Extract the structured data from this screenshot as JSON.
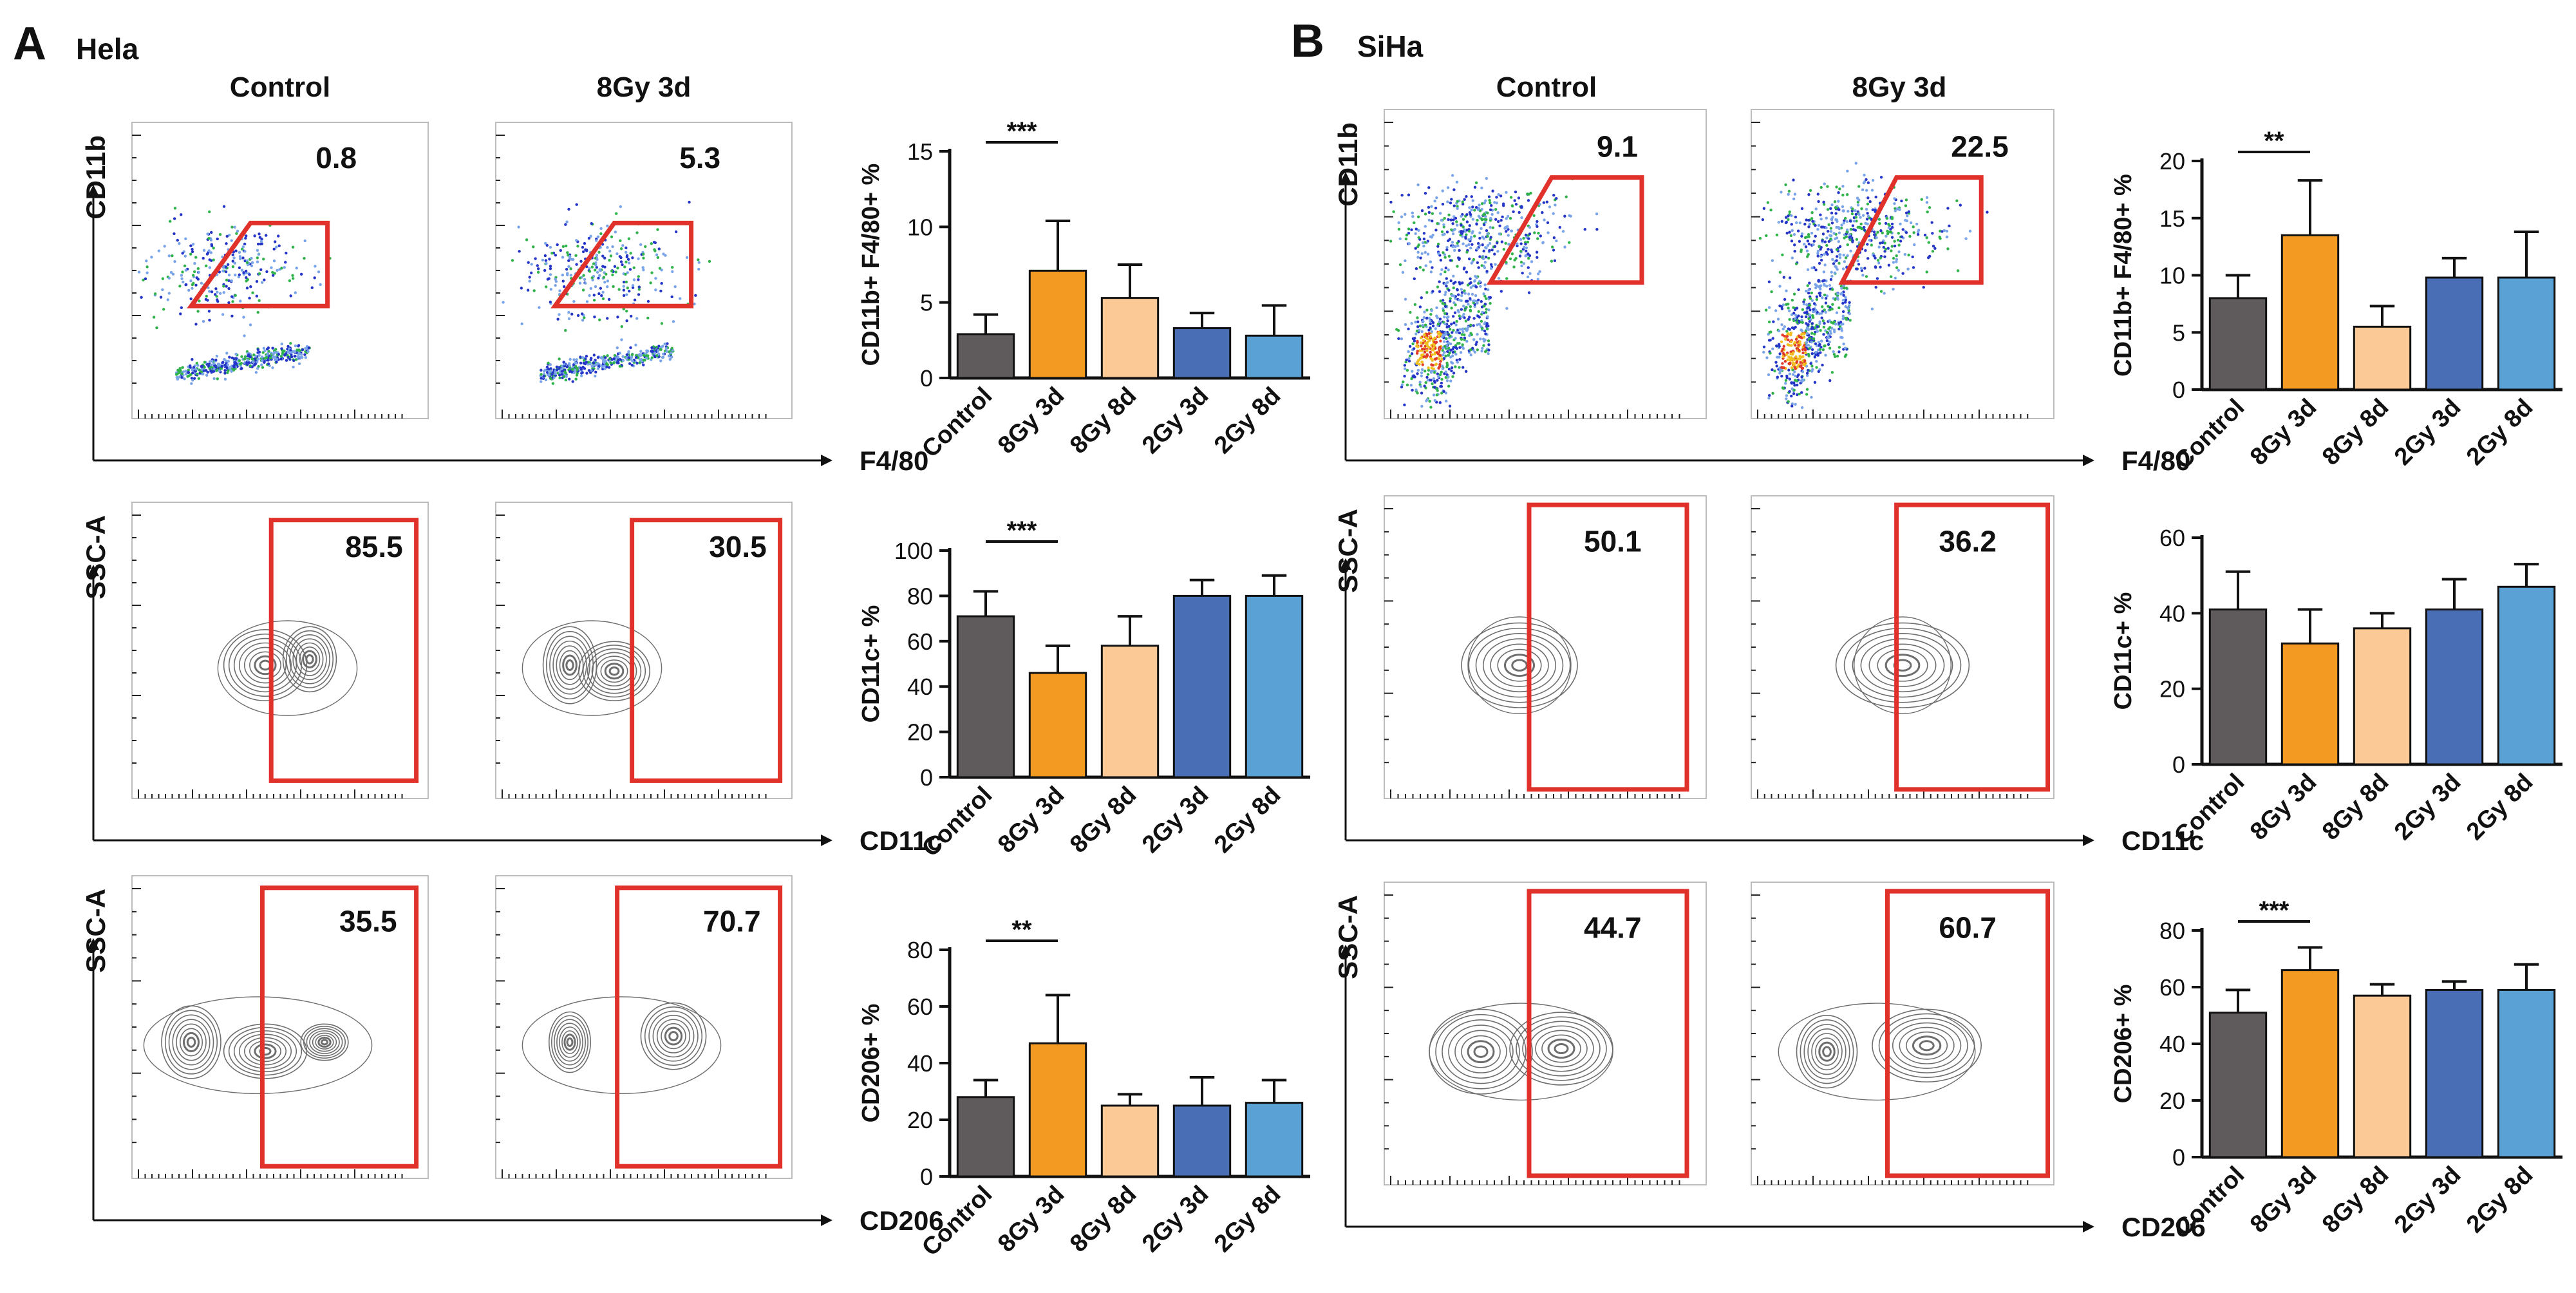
{
  "panels": [
    {
      "letter": "A",
      "cell_line": "Hela",
      "conditions": [
        "Control",
        "8Gy 3d"
      ],
      "rows": [
        {
          "kind": "dot",
          "y_axis": "CD11b",
          "x_axis": "F4/80",
          "gate_values": [
            "0.8",
            "5.3"
          ]
        },
        {
          "kind": "contour",
          "y_axis": "SSC-A",
          "x_axis": "CD11c",
          "gate_values": [
            "85.5",
            "30.5"
          ]
        },
        {
          "kind": "contour",
          "y_axis": "SSC-A",
          "x_axis": "CD206",
          "gate_values": [
            "35.5",
            "70.7"
          ]
        }
      ]
    },
    {
      "letter": "B",
      "cell_line": "SiHa",
      "conditions": [
        "Control",
        "8Gy 3d"
      ],
      "rows": [
        {
          "kind": "dot",
          "y_axis": "CD11b",
          "x_axis": "F4/80",
          "gate_values": [
            "9.1",
            "22.5"
          ]
        },
        {
          "kind": "contour",
          "y_axis": "SSC-A",
          "x_axis": "CD11c",
          "gate_values": [
            "50.1",
            "36.2"
          ]
        },
        {
          "kind": "contour",
          "y_axis": "SSC-A",
          "x_axis": "CD206",
          "gate_values": [
            "44.7",
            "60.7"
          ]
        }
      ]
    }
  ],
  "colors": {
    "Control": "#5f5b5d",
    "8Gy 3d": "#f39a23",
    "8Gy 8d": "#fbc995",
    "2Gy 3d": "#4a6eb5",
    "2Gy 8d": "#5aa2d6",
    "gate": "#e0322b",
    "contour": "#6e6e6e"
  },
  "chart_data": [
    {
      "type": "bar",
      "panel": "A",
      "title": "",
      "categories": [
        "Control",
        "8Gy 3d",
        "8Gy 8d",
        "2Gy 3d",
        "2Gy 8d"
      ],
      "values": [
        2.9,
        7.1,
        5.3,
        3.3,
        2.8
      ],
      "errors": [
        1.3,
        3.3,
        2.2,
        1.0,
        2.0
      ],
      "ylabel": "CD11b+ F4/80+ %",
      "xlabel": "",
      "ylim": [
        0,
        15
      ],
      "yticks": [
        0,
        5,
        10,
        15
      ],
      "significance": [
        {
          "from": "Control",
          "to": "8Gy 3d",
          "label": "***"
        }
      ]
    },
    {
      "type": "bar",
      "panel": "A",
      "title": "",
      "categories": [
        "Control",
        "8Gy 3d",
        "8Gy 8d",
        "2Gy 3d",
        "2Gy 8d"
      ],
      "values": [
        71,
        46,
        58,
        80,
        80
      ],
      "errors": [
        11,
        12,
        13,
        7,
        9
      ],
      "ylabel": "CD11c+ %",
      "xlabel": "",
      "ylim": [
        0,
        100
      ],
      "yticks": [
        0,
        20,
        40,
        60,
        80,
        100
      ],
      "significance": [
        {
          "from": "Control",
          "to": "8Gy 3d",
          "label": "***"
        }
      ]
    },
    {
      "type": "bar",
      "panel": "A",
      "title": "",
      "categories": [
        "Control",
        "8Gy 3d",
        "8Gy 8d",
        "2Gy 3d",
        "2Gy 8d"
      ],
      "values": [
        28,
        47,
        25,
        25,
        26
      ],
      "errors": [
        6,
        17,
        4,
        10,
        8
      ],
      "ylabel": "CD206+ %",
      "xlabel": "",
      "ylim": [
        0,
        80
      ],
      "yticks": [
        0,
        20,
        40,
        60,
        80
      ],
      "significance": [
        {
          "from": "Control",
          "to": "8Gy 3d",
          "label": "**"
        }
      ]
    },
    {
      "type": "bar",
      "panel": "B",
      "title": "",
      "categories": [
        "Control",
        "8Gy 3d",
        "8Gy 8d",
        "2Gy 3d",
        "2Gy 8d"
      ],
      "values": [
        8,
        13.5,
        5.5,
        9.8,
        9.8
      ],
      "errors": [
        2,
        4.8,
        1.8,
        1.7,
        4
      ],
      "ylabel": "CD11b+ F4/80+ %",
      "xlabel": "",
      "ylim": [
        0,
        20
      ],
      "yticks": [
        0,
        5,
        10,
        15,
        20
      ],
      "significance": [
        {
          "from": "Control",
          "to": "8Gy 3d",
          "label": "**"
        }
      ]
    },
    {
      "type": "bar",
      "panel": "B",
      "title": "",
      "categories": [
        "Control",
        "8Gy 3d",
        "8Gy 8d",
        "2Gy 3d",
        "2Gy 8d"
      ],
      "values": [
        41,
        32,
        36,
        41,
        47
      ],
      "errors": [
        10,
        9,
        4,
        8,
        6
      ],
      "ylabel": "CD11c+ %",
      "xlabel": "",
      "ylim": [
        0,
        60
      ],
      "yticks": [
        0,
        20,
        40,
        60
      ],
      "significance": []
    },
    {
      "type": "bar",
      "panel": "B",
      "title": "",
      "categories": [
        "Control",
        "8Gy 3d",
        "8Gy 8d",
        "2Gy 3d",
        "2Gy 8d"
      ],
      "values": [
        51,
        66,
        57,
        59,
        59
      ],
      "errors": [
        8,
        8,
        4,
        3,
        9
      ],
      "ylabel": "CD206+ %",
      "xlabel": "",
      "ylim": [
        0,
        80
      ],
      "yticks": [
        0,
        20,
        40,
        60,
        80
      ],
      "significance": [
        {
          "from": "Control",
          "to": "8Gy 3d",
          "label": "***"
        }
      ]
    }
  ]
}
